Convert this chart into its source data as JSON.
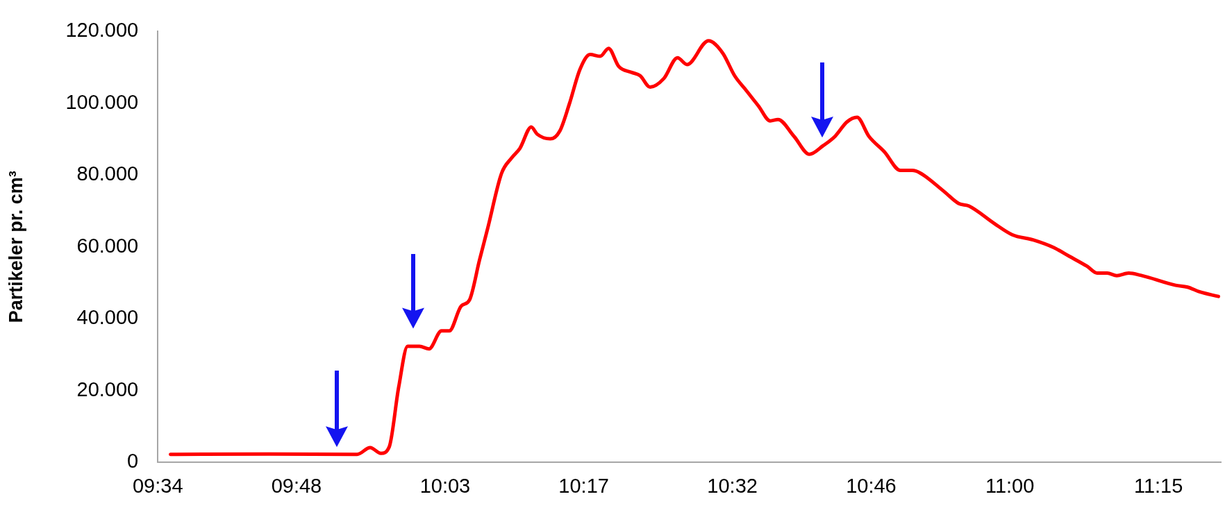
{
  "chart_data": {
    "type": "line",
    "ylabel": "Partikeler pr. cm³",
    "x": [
      9.588,
      9.754,
      9.902,
      9.924,
      9.942,
      9.956,
      9.972,
      9.987,
      10.007,
      10.023,
      10.044,
      10.057,
      10.077,
      10.091,
      10.108,
      10.122,
      10.145,
      10.162,
      10.176,
      10.195,
      10.205,
      10.227,
      10.243,
      10.259,
      10.277,
      10.294,
      10.311,
      10.325,
      10.342,
      10.364,
      10.378,
      10.395,
      10.418,
      10.441,
      10.457,
      10.493,
      10.517,
      10.537,
      10.557,
      10.577,
      10.597,
      10.61,
      10.637,
      10.663,
      10.686,
      10.706,
      10.726,
      10.743,
      10.763,
      10.789,
      10.816,
      10.836,
      10.849,
      10.889,
      10.914,
      10.931,
      10.974,
      11.004,
      11.04,
      11.074,
      11.1,
      11.13,
      11.147,
      11.164,
      11.18,
      11.2,
      11.22,
      11.279,
      11.299,
      11.319,
      11.351
    ],
    "series": [
      {
        "color": "#ff0000",
        "values": [
          2200,
          2300,
          2200,
          4100,
          2500,
          4300,
          21000,
          32300,
          32300,
          31600,
          36600,
          36600,
          43500,
          45200,
          56400,
          65400,
          80500,
          84800,
          87500,
          93400,
          91400,
          90100,
          92300,
          99800,
          109500,
          113600,
          113100,
          115300,
          110300,
          108600,
          107700,
          104500,
          106900,
          112700,
          110800,
          117400,
          114000,
          107700,
          103500,
          99300,
          95100,
          95500,
          90800,
          85800,
          88200,
          90800,
          94800,
          96100,
          90800,
          86500,
          81300,
          81300,
          80600,
          75500,
          72100,
          71400,
          66500,
          63400,
          61900,
          59800,
          57400,
          54600,
          52700,
          52700,
          52000,
          52700,
          52100,
          49300,
          48800,
          47500,
          46200
        ]
      }
    ],
    "xlim": [
      9.5667,
      11.355
    ],
    "xticks": [
      {
        "value": 9.5667,
        "label": "09:34"
      },
      {
        "value": 9.8,
        "label": "09:48"
      },
      {
        "value": 10.05,
        "label": "10:03"
      },
      {
        "value": 10.2833,
        "label": "10:17"
      },
      {
        "value": 10.5333,
        "label": "10:32"
      },
      {
        "value": 10.7667,
        "label": "10:46"
      },
      {
        "value": 11,
        "label": "11:00"
      },
      {
        "value": 11.25,
        "label": "11:15"
      }
    ],
    "ylim": [
      0,
      120000
    ],
    "yticks": [
      0,
      {
        "value": 20000,
        "label": "20.000"
      },
      {
        "value": 40000,
        "label": "40.000"
      },
      {
        "value": 60000,
        "label": "60.000"
      },
      {
        "value": 80000,
        "label": "80.000"
      },
      {
        "value": 100000,
        "label": "100.000"
      },
      {
        "value": 120000,
        "label": "120.000"
      }
    ],
    "grid": false,
    "legend": false,
    "marker": "none",
    "line_style": "solid"
  }
}
